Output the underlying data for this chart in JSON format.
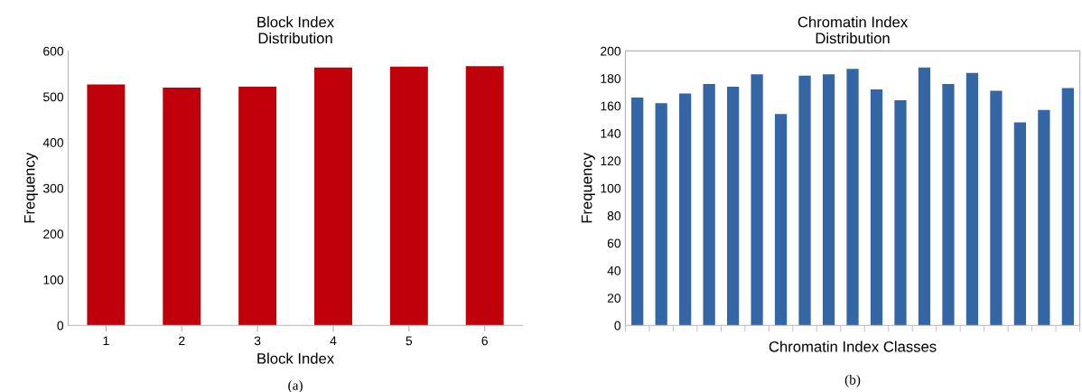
{
  "chart_data": [
    {
      "type": "bar",
      "title": "Block Index\nDistribution",
      "xlabel": "Block Index",
      "ylabel": "Frequency",
      "categories": [
        "1",
        "2",
        "3",
        "4",
        "5",
        "6"
      ],
      "values": [
        527,
        520,
        522,
        564,
        566,
        567
      ],
      "color": "#c0000b",
      "ylim": [
        0,
        600
      ],
      "yticks": [
        0,
        100,
        200,
        300,
        400,
        500,
        600
      ],
      "grid": false,
      "annotations": [
        "(a)"
      ]
    },
    {
      "type": "bar",
      "title": "Chromatin Index\nDistribution",
      "xlabel": "Chromatin Index Classes",
      "ylabel": "Frequency",
      "categories": [
        null,
        null,
        null,
        null,
        null,
        null,
        null,
        null,
        null,
        null,
        null,
        null,
        null,
        null,
        null,
        null,
        null,
        null,
        null
      ],
      "values": [
        166,
        162,
        169,
        176,
        174,
        183,
        154,
        182,
        183,
        187,
        172,
        164,
        188,
        176,
        184,
        171,
        148,
        157,
        173
      ],
      "color": "#3465a4",
      "ylim": [
        0,
        200
      ],
      "yticks": [
        0,
        20,
        40,
        60,
        80,
        100,
        120,
        140,
        160,
        180,
        200
      ],
      "grid": false,
      "annotations": [
        "(b)"
      ]
    }
  ]
}
